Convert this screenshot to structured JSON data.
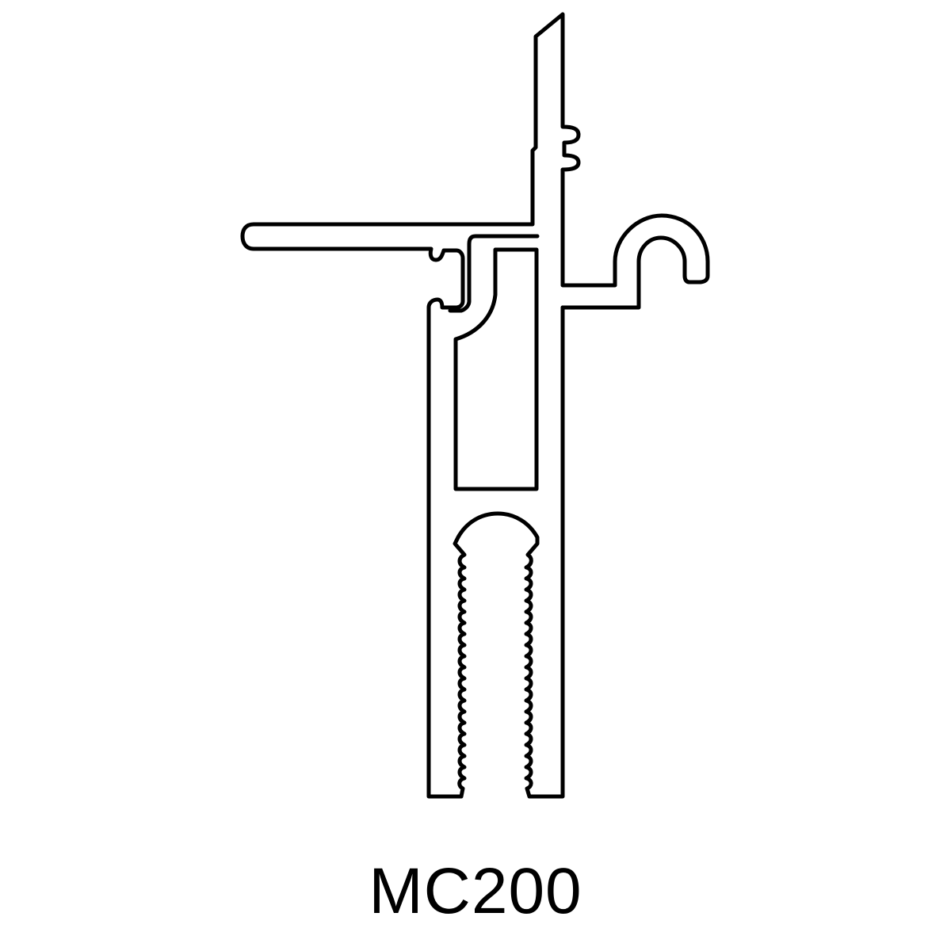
{
  "profile": {
    "label": "MC200",
    "stroke_color": "#000000",
    "background_color": "#ffffff"
  }
}
